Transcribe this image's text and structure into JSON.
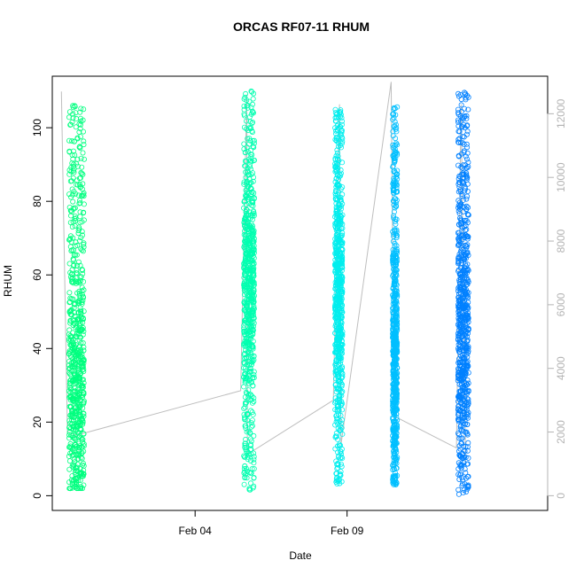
{
  "chart_data": {
    "type": "scatter",
    "title": "ORCAS RF07-11 RHUM",
    "xlabel": "Date",
    "ylabel": "RHUM",
    "x_ticks": [
      "Feb 04",
      "Feb 09"
    ],
    "xlim_days": [
      -4.7,
      11.6
    ],
    "x_tick_days": [
      0,
      5
    ],
    "ylim": [
      -4,
      114
    ],
    "y_ticks": [
      0,
      20,
      40,
      60,
      80,
      100
    ],
    "y2_ticks": [
      0,
      2000,
      4000,
      6000,
      8000,
      10000,
      12000
    ],
    "y2lim": [
      0,
      12000
    ],
    "grid": false,
    "series": [
      {
        "color": "#00FF7F",
        "x_range_days": [
          -4.15,
          -3.65
        ],
        "rhum_range": [
          2,
          106
        ],
        "rhum_mean": 28
      },
      {
        "color": "#00FFB0",
        "x_range_days": [
          1.6,
          1.95
        ],
        "rhum_range": [
          1,
          110
        ],
        "rhum_mean": 60
      },
      {
        "color": "#00EEEE",
        "x_range_days": [
          4.6,
          4.85
        ],
        "rhum_range": [
          3,
          105
        ],
        "rhum_mean": 55
      },
      {
        "color": "#00BFFF",
        "x_range_days": [
          6.5,
          6.65
        ],
        "rhum_range": [
          3,
          106
        ],
        "rhum_mean": 35
      },
      {
        "color": "#0080FF",
        "x_range_days": [
          8.65,
          9.0
        ],
        "rhum_range": [
          0,
          110
        ],
        "rhum_mean": 45
      }
    ],
    "altitude_series": {
      "color": "#BEBEBE",
      "axis": "right",
      "points": [
        {
          "x": -4.4,
          "y": 12700
        },
        {
          "x": -4.2,
          "y": 2000
        },
        {
          "x": -3.9,
          "y": 1900
        },
        {
          "x": 1.5,
          "y": 3300
        },
        {
          "x": 1.7,
          "y": 12600
        },
        {
          "x": 1.72,
          "y": 1300
        },
        {
          "x": 4.55,
          "y": 3000
        },
        {
          "x": 4.75,
          "y": 12300
        },
        {
          "x": 4.8,
          "y": 1600
        },
        {
          "x": 6.45,
          "y": 13000
        },
        {
          "x": 6.55,
          "y": 2500
        },
        {
          "x": 8.6,
          "y": 1500
        },
        {
          "x": 8.75,
          "y": 12300
        },
        {
          "x": 8.9,
          "y": 1000
        }
      ]
    }
  }
}
